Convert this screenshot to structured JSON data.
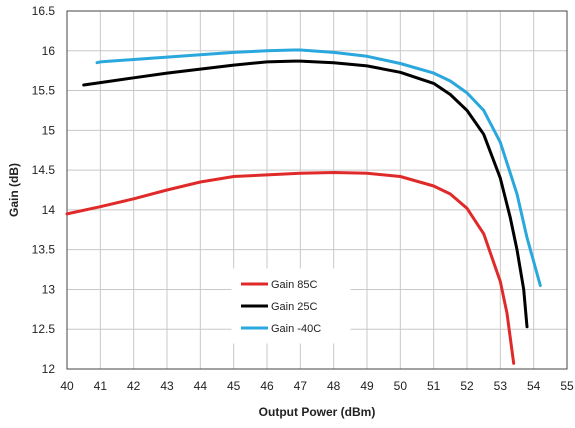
{
  "chart_data": {
    "type": "line",
    "xlabel": "Output Power (dBm)",
    "ylabel": "Gain (dB)",
    "xlim": [
      40,
      55
    ],
    "ylim": [
      12,
      16.5
    ],
    "x_ticks": [
      "40",
      "41",
      "42",
      "43",
      "44",
      "45",
      "46",
      "47",
      "48",
      "49",
      "50",
      "51",
      "52",
      "53",
      "54",
      "55"
    ],
    "y_ticks": [
      "12",
      "12.5",
      "13",
      "13.5",
      "14",
      "14.5",
      "15",
      "15.5",
      "16",
      "16.5"
    ],
    "grid": true,
    "legend_position": "lower-center",
    "series": [
      {
        "name": "Gain 85C",
        "color": "#e02a2a",
        "points": [
          [
            40,
            13.95
          ],
          [
            41,
            14.04
          ],
          [
            42,
            14.14
          ],
          [
            43,
            14.25
          ],
          [
            44,
            14.35
          ],
          [
            45,
            14.42
          ],
          [
            46,
            14.44
          ],
          [
            47,
            14.46
          ],
          [
            48,
            14.47
          ],
          [
            49,
            14.46
          ],
          [
            50,
            14.42
          ],
          [
            51,
            14.3
          ],
          [
            51.5,
            14.2
          ],
          [
            52,
            14.02
          ],
          [
            52.5,
            13.7
          ],
          [
            53,
            13.1
          ],
          [
            53.2,
            12.7
          ],
          [
            53.4,
            12.07
          ]
        ]
      },
      {
        "name": "Gain 25C",
        "color": "#000000",
        "points": [
          [
            40.5,
            15.57
          ],
          [
            41,
            15.6
          ],
          [
            42,
            15.66
          ],
          [
            43,
            15.72
          ],
          [
            44,
            15.77
          ],
          [
            45,
            15.82
          ],
          [
            46,
            15.86
          ],
          [
            46.8,
            15.87
          ],
          [
            47,
            15.87
          ],
          [
            48,
            15.85
          ],
          [
            49,
            15.81
          ],
          [
            50,
            15.73
          ],
          [
            51,
            15.59
          ],
          [
            51.5,
            15.45
          ],
          [
            52,
            15.25
          ],
          [
            52.5,
            14.95
          ],
          [
            53,
            14.4
          ],
          [
            53.3,
            13.9
          ],
          [
            53.5,
            13.5
          ],
          [
            53.7,
            13.0
          ],
          [
            53.8,
            12.53
          ]
        ]
      },
      {
        "name": "Gain -40C",
        "color": "#2aa7dc",
        "points": [
          [
            40.9,
            15.85
          ],
          [
            41,
            15.86
          ],
          [
            42,
            15.89
          ],
          [
            43,
            15.92
          ],
          [
            44,
            15.95
          ],
          [
            45,
            15.98
          ],
          [
            46,
            16.0
          ],
          [
            46.8,
            16.01
          ],
          [
            47,
            16.01
          ],
          [
            48,
            15.98
          ],
          [
            49,
            15.93
          ],
          [
            50,
            15.84
          ],
          [
            51,
            15.72
          ],
          [
            51.5,
            15.62
          ],
          [
            52,
            15.47
          ],
          [
            52.5,
            15.25
          ],
          [
            53,
            14.85
          ],
          [
            53.5,
            14.2
          ],
          [
            53.8,
            13.65
          ],
          [
            54,
            13.35
          ],
          [
            54.2,
            13.05
          ]
        ]
      }
    ]
  }
}
